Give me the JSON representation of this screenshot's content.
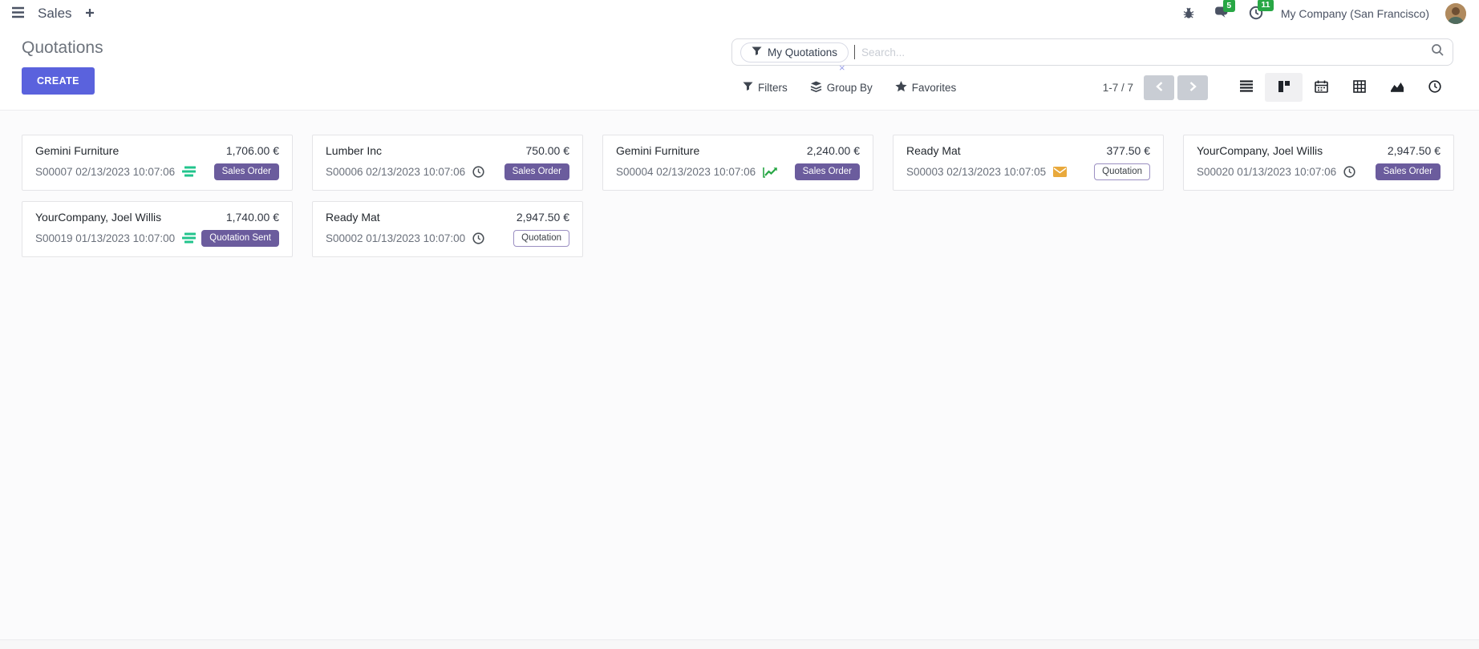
{
  "navbar": {
    "app_name": "Sales",
    "plus_label": "+",
    "messages_badge": "5",
    "activities_badge": "11",
    "company_name": "My Company (San Francisco)",
    "icons": [
      "apps-menu-icon",
      "plus-icon",
      "bug-icon",
      "messages-icon",
      "activity-clock-icon",
      "user-avatar"
    ]
  },
  "control_panel": {
    "title": "Quotations",
    "create_button": "CREATE",
    "search": {
      "facet_label": "My Quotations",
      "facet_remove": "×",
      "placeholder": "Search...",
      "icons": [
        "filter-funnel-icon",
        "search-icon"
      ]
    },
    "filters_label": "Filters",
    "group_by_label": "Group By",
    "favorites_label": "Favorites",
    "pager": {
      "range": "1-7 / 7"
    },
    "view_switcher": [
      "list",
      "kanban",
      "calendar",
      "pivot",
      "graph",
      "activity"
    ],
    "active_view": "kanban"
  },
  "cards": [
    {
      "customer": "Gemini Furniture",
      "amount": "1,706.00 €",
      "reference": "S00007 02/13/2023 10:07:06",
      "activity_icon": "tasks",
      "status": "Sales Order",
      "status_style": "filled"
    },
    {
      "customer": "Lumber Inc",
      "amount": "750.00 €",
      "reference": "S00006 02/13/2023 10:07:06",
      "activity_icon": "clock",
      "status": "Sales Order",
      "status_style": "filled"
    },
    {
      "customer": "Gemini Furniture",
      "amount": "2,240.00 €",
      "reference": "S00004 02/13/2023 10:07:06",
      "activity_icon": "chart",
      "status": "Sales Order",
      "status_style": "filled"
    },
    {
      "customer": "Ready Mat",
      "amount": "377.50 €",
      "reference": "S00003 02/13/2023 10:07:05",
      "activity_icon": "envelope",
      "status": "Quotation",
      "status_style": "outline"
    },
    {
      "customer": "YourCompany, Joel Willis",
      "amount": "2,947.50 €",
      "reference": "S00020 01/13/2023 10:07:06",
      "activity_icon": "clock",
      "status": "Sales Order",
      "status_style": "filled"
    },
    {
      "customer": "YourCompany, Joel Willis",
      "amount": "1,740.00 €",
      "reference": "S00019 01/13/2023 10:07:00",
      "activity_icon": "tasks",
      "status": "Quotation Sent",
      "status_style": "filled"
    },
    {
      "customer": "Ready Mat",
      "amount": "2,947.50 €",
      "reference": "S00002 01/13/2023 10:07:00",
      "activity_icon": "clock",
      "status": "Quotation",
      "status_style": "outline"
    }
  ],
  "colors": {
    "accent_button": "#5a62dd",
    "badge_filled": "#6b5c9d",
    "notification_green": "#28a745",
    "activity_tasks_green": "#22c48c",
    "activity_chart_green": "#28a745",
    "activity_envelope_orange": "#e9a93c"
  }
}
